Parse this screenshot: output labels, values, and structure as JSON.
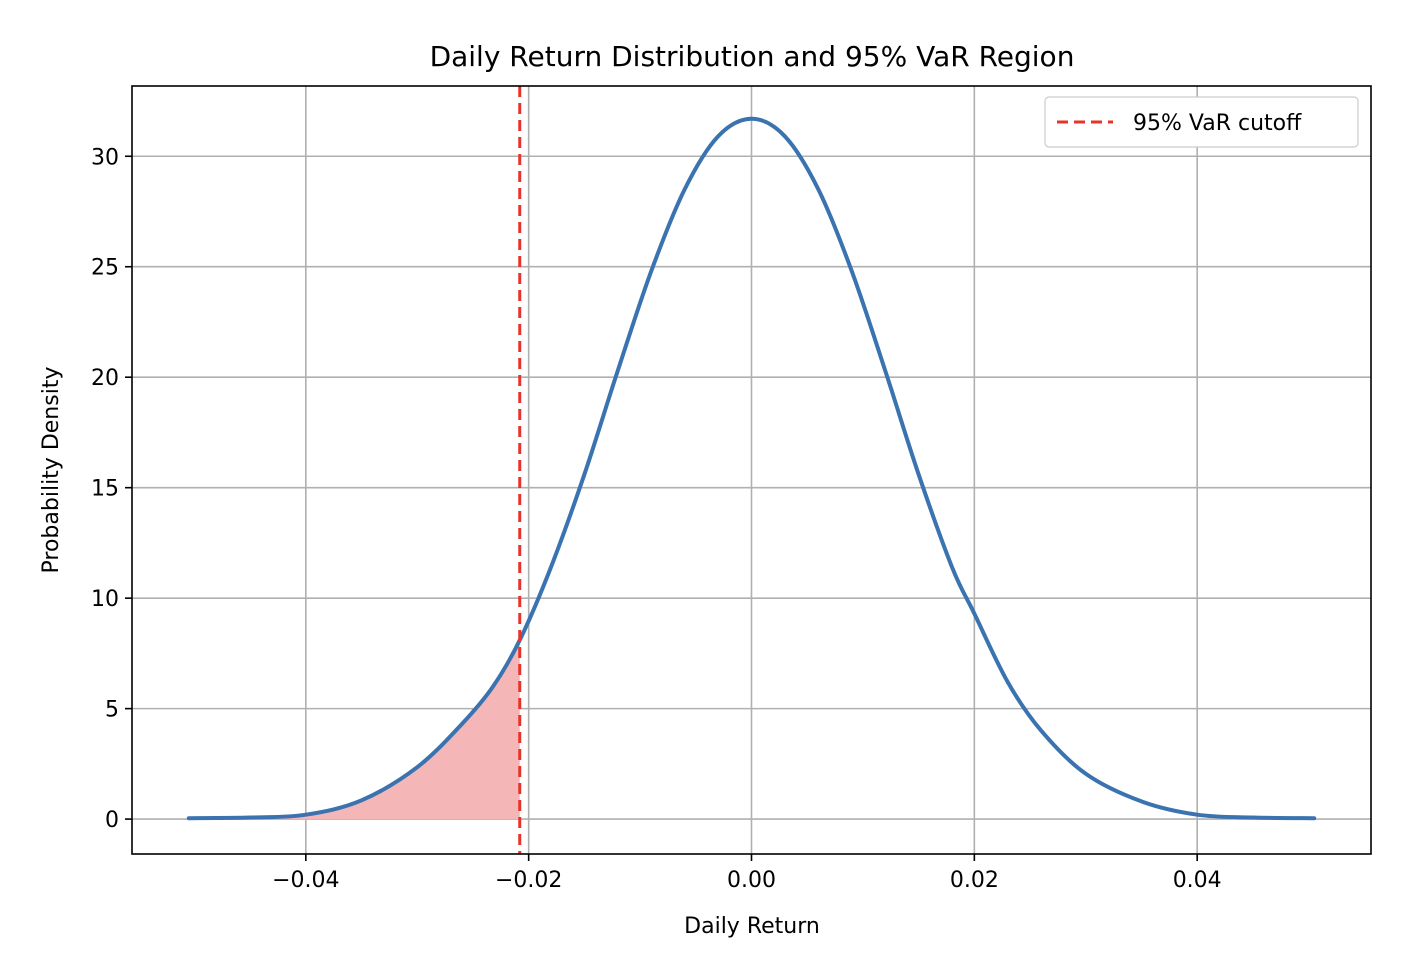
{
  "chart_data": {
    "type": "line",
    "title": "Daily Return Distribution and 95% VaR Region",
    "xlabel": "Daily Return",
    "ylabel": "Probability Density",
    "xlim": [
      -0.0556,
      0.0556
    ],
    "ylim": [
      -1.58,
      33.18
    ],
    "x_ticks": [
      -0.04,
      -0.02,
      0.0,
      0.02,
      0.04
    ],
    "x_tick_labels": [
      "−0.04",
      "−0.02",
      "0.00",
      "0.02",
      "0.04"
    ],
    "y_ticks": [
      0,
      5,
      10,
      15,
      20,
      25,
      30
    ],
    "y_tick_labels": [
      "0",
      "5",
      "10",
      "15",
      "20",
      "25",
      "30"
    ],
    "grid": true,
    "legend_position": "upper right",
    "series": [
      {
        "kind": "curve",
        "color": "#3a73b0",
        "x": [
          -0.0505,
          -0.045,
          -0.04,
          -0.035,
          -0.03,
          -0.026,
          -0.0232,
          -0.0208,
          -0.018,
          -0.015,
          -0.012,
          -0.009,
          -0.006,
          -0.003,
          0.0,
          0.003,
          0.006,
          0.009,
          0.012,
          0.015,
          0.018,
          0.02,
          0.023,
          0.026,
          0.03,
          0.035,
          0.04,
          0.045,
          0.0505
        ],
        "y": [
          0.04,
          0.07,
          0.2,
          0.85,
          2.35,
          4.3,
          6.0,
          8.1,
          11.4,
          15.6,
          20.3,
          24.8,
          28.5,
          30.9,
          31.7,
          30.9,
          28.5,
          24.8,
          20.3,
          15.6,
          11.4,
          9.3,
          6.2,
          4.0,
          2.05,
          0.8,
          0.2,
          0.07,
          0.04
        ]
      },
      {
        "name": "95% VaR cutoff",
        "kind": "vline",
        "color": "#e8332a",
        "x": -0.0208
      }
    ],
    "shaded_region": {
      "x_min": -0.0505,
      "x_max": -0.0208,
      "color": "#f4b6b6"
    }
  }
}
